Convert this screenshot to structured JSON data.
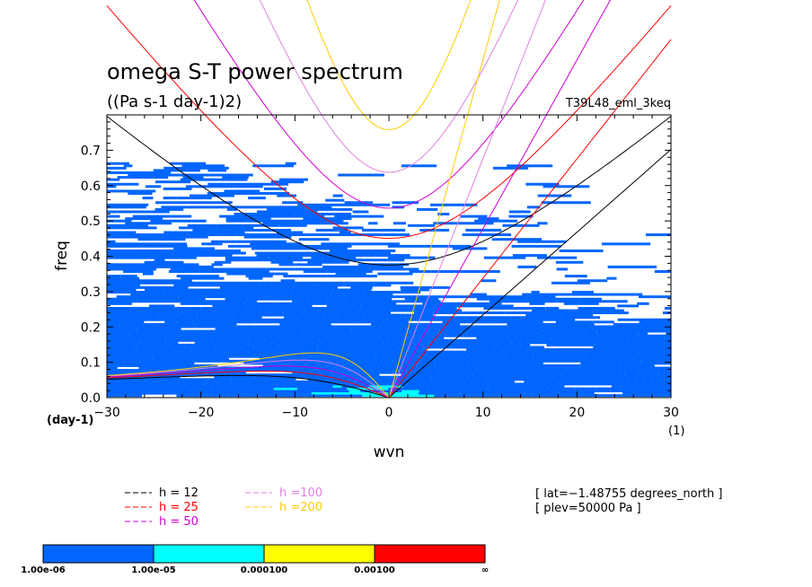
{
  "chart_data": {
    "type": "heatmap",
    "title": "omega S-T power spectrum",
    "subtitle": "((Pa s-1 day-1)2)",
    "dataset_label": "T39L48_eml_3keq",
    "xlabel": "wvn",
    "ylabel": "freq",
    "x_unit": "(1)",
    "y_unit": "(day-1)",
    "xlim": [
      -30,
      30
    ],
    "ylim": [
      0,
      0.8
    ],
    "x_ticks": [
      "−30",
      "−20",
      "−10",
      "0",
      "10",
      "20",
      "30"
    ],
    "y_ticks": [
      "0.0",
      "0.1",
      "0.2",
      "0.3",
      "0.4",
      "0.5",
      "0.6",
      "0.7"
    ],
    "tick_values_x": [
      -30,
      -20,
      -10,
      0,
      10,
      20,
      30
    ],
    "tick_values_y": [
      0,
      0.1,
      0.2,
      0.3,
      0.4,
      0.5,
      0.6,
      0.7
    ],
    "power_levels": [
      "1.00e-06",
      "1.00e-05",
      "0.000100",
      "0.00100",
      "∞"
    ],
    "power_colors": [
      "#0066ff",
      "#00ffff",
      "#ffff00",
      "#ff0000"
    ],
    "power_coverage": {
      "description_bands": [
        {
          "wvn_range": [
            -30,
            30
          ],
          "freq_range": [
            0,
            0.2
          ],
          "level_index": 0
        },
        {
          "wvn_range": [
            -30,
            0
          ],
          "freq_range": [
            0.2,
            0.55
          ],
          "level_index": 0
        },
        {
          "wvn_range": [
            0,
            30
          ],
          "freq_range": [
            0.2,
            0.3
          ],
          "level_index": 0
        },
        {
          "wvn_range": [
            -30,
            -10
          ],
          "freq_range": [
            0.55,
            0.65
          ],
          "level_index": 0
        },
        {
          "wvn_range": [
            -12,
            2
          ],
          "freq_range": [
            0.0,
            0.04
          ],
          "level_index": 1
        }
      ]
    },
    "dispersion_curves": {
      "equivalent_depths": [
        12,
        25,
        50,
        100,
        200
      ],
      "colors": [
        "#000000",
        "#ff0000",
        "#d000d0",
        "#e080e0",
        "#ffcc00"
      ]
    },
    "legend": [
      {
        "label": "h = 12",
        "color": "#000000"
      },
      {
        "label": "h = 25",
        "color": "#ff0000"
      },
      {
        "label": "h = 50",
        "color": "#d000d0"
      },
      {
        "label": "h =100",
        "color": "#e080e0"
      },
      {
        "label": "h =200",
        "color": "#ffcc00"
      }
    ],
    "annotations": [
      "[ lat=−1.48755 degrees_north ]",
      "[ plev=50000 Pa ]"
    ]
  }
}
